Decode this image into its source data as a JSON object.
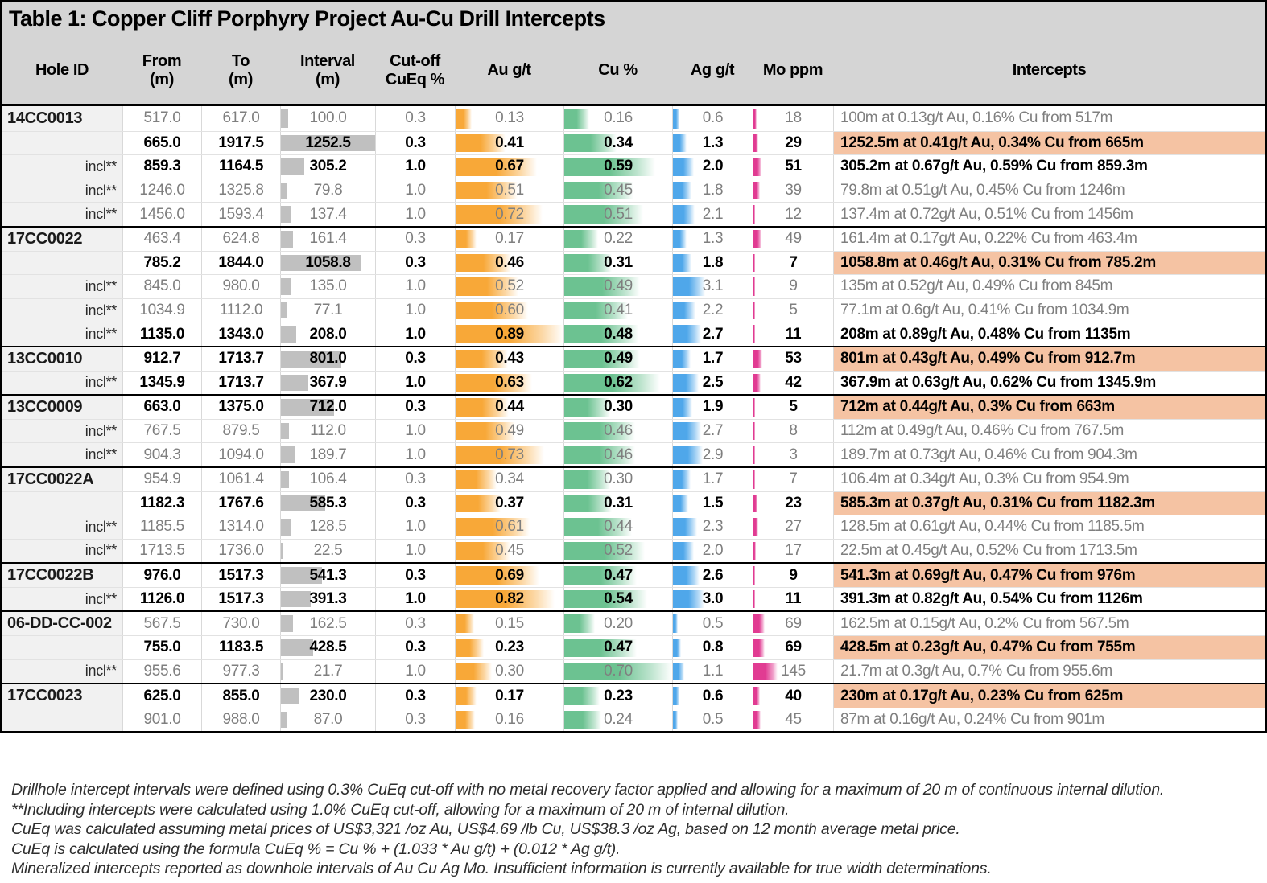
{
  "chart_data": {
    "type": "table",
    "title": "Table 1: Copper Cliff Porphyry Project Au-Cu Drill Intercepts",
    "columns": [
      {
        "label": "Hole ID",
        "sub": ""
      },
      {
        "label": "From",
        "sub": "(m)"
      },
      {
        "label": "To",
        "sub": "(m)"
      },
      {
        "label": "Interval",
        "sub": "(m)"
      },
      {
        "label": "Cut-off",
        "sub": "CuEq %"
      },
      {
        "label": "Au g/t",
        "sub": ""
      },
      {
        "label": "Cu %",
        "sub": ""
      },
      {
        "label": "Ag g/t",
        "sub": ""
      },
      {
        "label": "Mo ppm",
        "sub": ""
      },
      {
        "label": "Intercepts",
        "sub": ""
      }
    ],
    "bar_max": {
      "interval": 1252.5,
      "au": 0.89,
      "cu": 0.7,
      "ag": 7.7,
      "mo": 480
    },
    "colors": {
      "header_bg": "#D5D5D5",
      "holeid_bg": "#F1F1F1",
      "highlight_bg": "#F5C3A3",
      "interval_bar": "#C0C0C0",
      "au_bar": "#F8A838",
      "cu_bar": "#6CC291",
      "ag_bar": "#4FA7EA",
      "mo_bar": "#E13B92",
      "dim_text": "#7F7F7F"
    },
    "rows": [
      {
        "hole": "14CC0013",
        "label": "",
        "from": "517.0",
        "to": "617.0",
        "interval": "100.0",
        "cutoff": "0.3",
        "au": "0.13",
        "cu": "0.16",
        "ag": "0.6",
        "mo": "18",
        "intercept": "100m at 0.13g/t Au, 0.16% Cu from 517m",
        "style": "dim",
        "group": true
      },
      {
        "hole": "",
        "label": "",
        "from": "665.0",
        "to": "1917.5",
        "interval": "1252.5",
        "cutoff": "0.3",
        "au": "0.41",
        "cu": "0.34",
        "ag": "1.3",
        "mo": "29",
        "intercept": "1252.5m at 0.41g/t Au, 0.34% Cu from 665m",
        "style": "highlight",
        "group": false
      },
      {
        "hole": "",
        "label": "incl**",
        "from": "859.3",
        "to": "1164.5",
        "interval": "305.2",
        "cutoff": "1.0",
        "au": "0.67",
        "cu": "0.59",
        "ag": "2.0",
        "mo": "51",
        "intercept": "305.2m at 0.67g/t Au, 0.59% Cu from 859.3m",
        "style": "boldincl",
        "group": false
      },
      {
        "hole": "",
        "label": "incl**",
        "from": "1246.0",
        "to": "1325.8",
        "interval": "79.8",
        "cutoff": "1.0",
        "au": "0.51",
        "cu": "0.45",
        "ag": "1.8",
        "mo": "39",
        "intercept": "79.8m at 0.51g/t Au, 0.45% Cu from 1246m",
        "style": "dim",
        "group": false
      },
      {
        "hole": "",
        "label": "incl**",
        "from": "1456.0",
        "to": "1593.4",
        "interval": "137.4",
        "cutoff": "1.0",
        "au": "0.72",
        "cu": "0.51",
        "ag": "2.1",
        "mo": "12",
        "intercept": "137.4m at 0.72g/t Au, 0.51% Cu from 1456m",
        "style": "dim",
        "group": false
      },
      {
        "hole": "17CC0022",
        "label": "",
        "from": "463.4",
        "to": "624.8",
        "interval": "161.4",
        "cutoff": "0.3",
        "au": "0.17",
        "cu": "0.22",
        "ag": "1.3",
        "mo": "49",
        "intercept": "161.4m at 0.17g/t Au, 0.22% Cu from 463.4m",
        "style": "dim",
        "group": true
      },
      {
        "hole": "",
        "label": "",
        "from": "785.2",
        "to": "1844.0",
        "interval": "1058.8",
        "cutoff": "0.3",
        "au": "0.46",
        "cu": "0.31",
        "ag": "1.8",
        "mo": "7",
        "intercept": "1058.8m at 0.46g/t Au, 0.31% Cu from 785.2m",
        "style": "highlight",
        "group": false
      },
      {
        "hole": "",
        "label": "incl**",
        "from": "845.0",
        "to": "980.0",
        "interval": "135.0",
        "cutoff": "1.0",
        "au": "0.52",
        "cu": "0.49",
        "ag": "3.1",
        "mo": "9",
        "intercept": "135m at 0.52g/t Au, 0.49% Cu from 845m",
        "style": "dim",
        "group": false
      },
      {
        "hole": "",
        "label": "incl**",
        "from": "1034.9",
        "to": "1112.0",
        "interval": "77.1",
        "cutoff": "1.0",
        "au": "0.60",
        "cu": "0.41",
        "ag": "2.2",
        "mo": "5",
        "intercept": "77.1m at 0.6g/t Au, 0.41% Cu from 1034.9m",
        "style": "dim",
        "group": false
      },
      {
        "hole": "",
        "label": "incl**",
        "from": "1135.0",
        "to": "1343.0",
        "interval": "208.0",
        "cutoff": "1.0",
        "au": "0.89",
        "cu": "0.48",
        "ag": "2.7",
        "mo": "11",
        "intercept": "208m at 0.89g/t Au, 0.48% Cu from 1135m",
        "style": "boldincl",
        "group": false
      },
      {
        "hole": "13CC0010",
        "label": "",
        "from": "912.7",
        "to": "1713.7",
        "interval": "801.0",
        "cutoff": "0.3",
        "au": "0.43",
        "cu": "0.49",
        "ag": "1.7",
        "mo": "53",
        "intercept": "801m at 0.43g/t Au, 0.49% Cu from 912.7m",
        "style": "highlight",
        "group": true
      },
      {
        "hole": "",
        "label": "incl**",
        "from": "1345.9",
        "to": "1713.7",
        "interval": "367.9",
        "cutoff": "1.0",
        "au": "0.63",
        "cu": "0.62",
        "ag": "2.5",
        "mo": "42",
        "intercept": "367.9m at 0.63g/t Au, 0.62% Cu from 1345.9m",
        "style": "boldincl",
        "group": false
      },
      {
        "hole": "13CC0009",
        "label": "",
        "from": "663.0",
        "to": "1375.0",
        "interval": "712.0",
        "cutoff": "0.3",
        "au": "0.44",
        "cu": "0.30",
        "ag": "1.9",
        "mo": "5",
        "intercept": "712m at 0.44g/t Au, 0.3% Cu from 663m",
        "style": "highlight",
        "group": true
      },
      {
        "hole": "",
        "label": "incl**",
        "from": "767.5",
        "to": "879.5",
        "interval": "112.0",
        "cutoff": "1.0",
        "au": "0.49",
        "cu": "0.46",
        "ag": "2.7",
        "mo": "8",
        "intercept": "112m at 0.49g/t Au, 0.46% Cu from 767.5m",
        "style": "dim",
        "group": false
      },
      {
        "hole": "",
        "label": "incl**",
        "from": "904.3",
        "to": "1094.0",
        "interval": "189.7",
        "cutoff": "1.0",
        "au": "0.73",
        "cu": "0.46",
        "ag": "2.9",
        "mo": "3",
        "intercept": "189.7m at 0.73g/t Au, 0.46% Cu from 904.3m",
        "style": "dim",
        "group": false
      },
      {
        "hole": "17CC0022A",
        "label": "",
        "from": "954.9",
        "to": "1061.4",
        "interval": "106.4",
        "cutoff": "0.3",
        "au": "0.34",
        "cu": "0.30",
        "ag": "1.7",
        "mo": "7",
        "intercept": "106.4m at 0.34g/t Au, 0.3% Cu from 954.9m",
        "style": "dim",
        "group": true
      },
      {
        "hole": "",
        "label": "",
        "from": "1182.3",
        "to": "1767.6",
        "interval": "585.3",
        "cutoff": "0.3",
        "au": "0.37",
        "cu": "0.31",
        "ag": "1.5",
        "mo": "23",
        "intercept": "585.3m at 0.37g/t Au, 0.31% Cu from 1182.3m",
        "style": "highlight",
        "group": false
      },
      {
        "hole": "",
        "label": "incl**",
        "from": "1185.5",
        "to": "1314.0",
        "interval": "128.5",
        "cutoff": "1.0",
        "au": "0.61",
        "cu": "0.44",
        "ag": "2.3",
        "mo": "27",
        "intercept": "128.5m at 0.61g/t Au, 0.44% Cu from 1185.5m",
        "style": "dim",
        "group": false
      },
      {
        "hole": "",
        "label": "incl**",
        "from": "1713.5",
        "to": "1736.0",
        "interval": "22.5",
        "cutoff": "1.0",
        "au": "0.45",
        "cu": "0.52",
        "ag": "2.0",
        "mo": "17",
        "intercept": "22.5m at 0.45g/t Au, 0.52% Cu from 1713.5m",
        "style": "dim",
        "group": false
      },
      {
        "hole": "17CC0022B",
        "label": "",
        "from": "976.0",
        "to": "1517.3",
        "interval": "541.3",
        "cutoff": "0.3",
        "au": "0.69",
        "cu": "0.47",
        "ag": "2.6",
        "mo": "9",
        "intercept": "541.3m at 0.69g/t Au, 0.47% Cu from 976m",
        "style": "highlight",
        "group": true
      },
      {
        "hole": "",
        "label": "incl**",
        "from": "1126.0",
        "to": "1517.3",
        "interval": "391.3",
        "cutoff": "1.0",
        "au": "0.82",
        "cu": "0.54",
        "ag": "3.0",
        "mo": "11",
        "intercept": "391.3m at 0.82g/t Au, 0.54% Cu from 1126m",
        "style": "boldincl",
        "group": false
      },
      {
        "hole": "06-DD-CC-002",
        "label": "",
        "from": "567.5",
        "to": "730.0",
        "interval": "162.5",
        "cutoff": "0.3",
        "au": "0.15",
        "cu": "0.20",
        "ag": "0.5",
        "mo": "69",
        "intercept": "162.5m at 0.15g/t Au, 0.2% Cu from 567.5m",
        "style": "dim",
        "group": true
      },
      {
        "hole": "",
        "label": "",
        "from": "755.0",
        "to": "1183.5",
        "interval": "428.5",
        "cutoff": "0.3",
        "au": "0.23",
        "cu": "0.47",
        "ag": "0.8",
        "mo": "69",
        "intercept": "428.5m at 0.23g/t Au, 0.47% Cu from 755m",
        "style": "highlight",
        "group": false
      },
      {
        "hole": "",
        "label": "incl**",
        "from": "955.6",
        "to": "977.3",
        "interval": "21.7",
        "cutoff": "1.0",
        "au": "0.30",
        "cu": "0.70",
        "ag": "1.1",
        "mo": "145",
        "intercept": "21.7m at 0.3g/t Au, 0.7% Cu from 955.6m",
        "style": "dim",
        "group": false
      },
      {
        "hole": "17CC0023",
        "label": "",
        "from": "625.0",
        "to": "855.0",
        "interval": "230.0",
        "cutoff": "0.3",
        "au": "0.17",
        "cu": "0.23",
        "ag": "0.6",
        "mo": "40",
        "intercept": "230m at 0.17g/t Au, 0.23% Cu from 625m",
        "style": "highlight",
        "group": true
      },
      {
        "hole": "",
        "label": "",
        "from": "901.0",
        "to": "988.0",
        "interval": "87.0",
        "cutoff": "0.3",
        "au": "0.16",
        "cu": "0.24",
        "ag": "0.5",
        "mo": "45",
        "intercept": "87m at 0.16g/t Au, 0.24% Cu from 901m",
        "style": "dim",
        "group": false
      }
    ],
    "footnotes": [
      "Drillhole intercept intervals were defined using 0.3% CuEq cut-off with no metal recovery factor applied and allowing for a maximum of 20 m of continuous internal dilution.",
      "**Including intercepts were calculated using 1.0% CuEq cut-off, allowing for a maximum of 20 m of internal dilution.",
      "CuEq was calculated assuming metal prices of US$3,321 /oz Au, US$4.69 /lb Cu, US$38.3 /oz Ag, based on 12 month average metal price.",
      "CuEq is calculated using the formula CuEq % = Cu % + (1.033 * Au g/t) + (0.012 * Ag g/t).",
      "Mineralized intercepts reported as downhole intervals of Au Cu Ag Mo. Insufficient information is currently available for true width determinations."
    ]
  }
}
